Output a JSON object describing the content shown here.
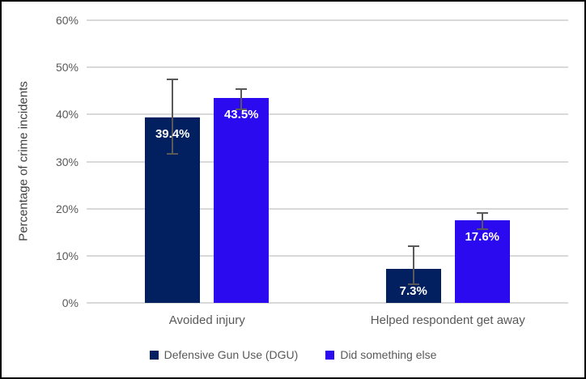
{
  "frame": {
    "background": "#FFFFFF",
    "border_color": "#000000"
  },
  "chart_data": {
    "type": "bar",
    "title": "",
    "xlabel": "",
    "ylabel": "Percentage of crime incidents",
    "categories": [
      "Avoided injury",
      "Helped respondent get away"
    ],
    "series": [
      {
        "name": "Defensive Gun Use (DGU)",
        "color": "#02205F",
        "values": [
          39.4,
          7.3
        ],
        "data_labels": [
          "39.4%",
          "7.3%"
        ],
        "error_upper": [
          47.5,
          12.0
        ],
        "error_lower": [
          31.6,
          3.9
        ]
      },
      {
        "name": "Did something else",
        "color": "#2B0AEF",
        "values": [
          43.5,
          17.6
        ],
        "data_labels": [
          "43.5%",
          "17.6%"
        ],
        "error_upper": [
          45.4,
          19.0
        ],
        "error_lower": [
          41.1,
          15.7
        ]
      }
    ],
    "ylim": [
      0,
      60
    ],
    "ytick_step": 10,
    "ytick_labels": [
      "0%",
      "10%",
      "20%",
      "30%",
      "40%",
      "50%",
      "60%"
    ],
    "grid": true,
    "legend_position": "bottom",
    "colors": {
      "gridline": "#D9D9D9",
      "axis_text": "#595959",
      "axis_title_text": "#404040",
      "error_bar": "#595959",
      "data_label": "#FFFFFF"
    }
  }
}
